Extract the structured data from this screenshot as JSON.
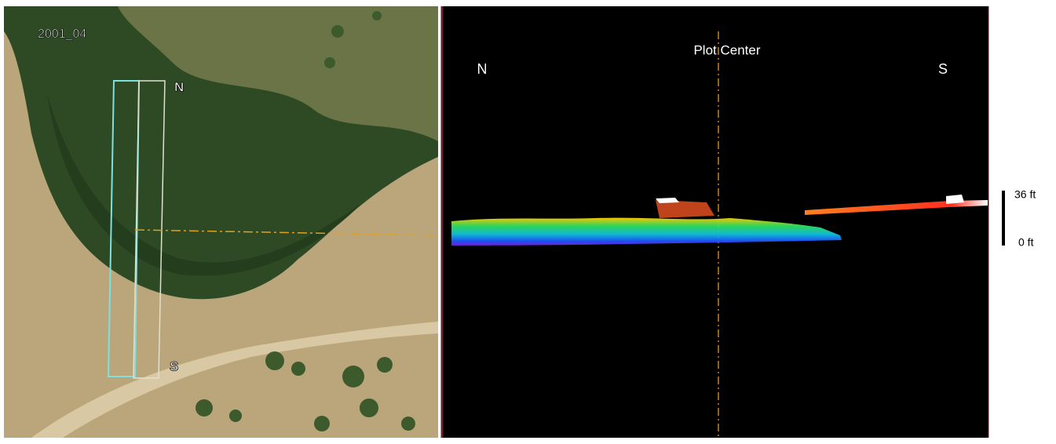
{
  "aerial": {
    "label": "2001_04",
    "north_label": "N",
    "south_label": "S"
  },
  "profile": {
    "title": "Plot Center",
    "north_label": "N",
    "south_label": "S"
  },
  "scale": {
    "top_label": "36 ft",
    "bottom_label": "0 ft"
  }
}
